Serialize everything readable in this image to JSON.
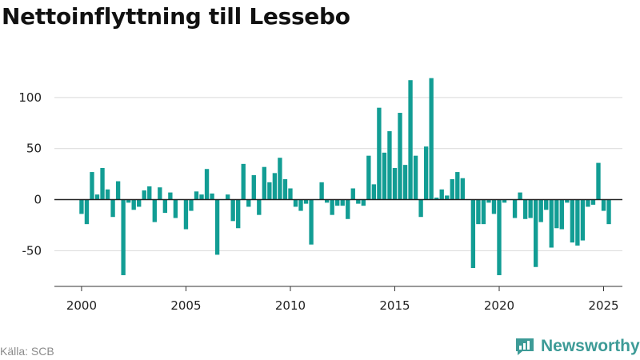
{
  "title": "Nettoinflyttning till Lessebo",
  "source": "Källa: SCB",
  "brand": {
    "name": "Newsworthy",
    "logo_icon": "bar-chart-speech-bubble-icon"
  },
  "colors": {
    "bar": "#129d94",
    "grid": "#d9d9d9",
    "zero_line": "#222222",
    "brand": "#3d9b97"
  },
  "chart_data": {
    "type": "bar",
    "title": "Nettoinflyttning till Lessebo",
    "xlabel": "",
    "ylabel": "",
    "frequency": "quarterly",
    "xlim": [
      1998.7,
      2025.9
    ],
    "ylim": [
      -85,
      125
    ],
    "x_ticks": [
      2000,
      2005,
      2010,
      2015,
      2020,
      2025
    ],
    "y_ticks": [
      -50,
      0,
      50,
      100
    ],
    "grid": true,
    "legend": "none",
    "start": "2000-Q1",
    "values": [
      -14,
      -24,
      27,
      5,
      31,
      10,
      -17,
      18,
      -74,
      -3,
      -10,
      -7,
      9,
      13,
      -22,
      12,
      -13,
      7,
      -18,
      0,
      -29,
      -11,
      8,
      5,
      30,
      6,
      -54,
      0,
      5,
      -21,
      -28,
      35,
      -7,
      24,
      -15,
      32,
      17,
      26,
      41,
      20,
      11,
      -7,
      -11,
      -4,
      -44,
      0,
      17,
      -3,
      -15,
      -6,
      -6,
      -19,
      11,
      -4,
      -6,
      43,
      15,
      90,
      46,
      67,
      31,
      85,
      34,
      117,
      43,
      -17,
      52,
      119,
      2,
      10,
      4,
      20,
      27,
      21,
      0,
      -67,
      -24,
      -24,
      -3,
      -14,
      -74,
      -3,
      0,
      -18,
      7,
      -19,
      -18,
      -66,
      -22,
      -10,
      -47,
      -28,
      -29,
      -3,
      -42,
      -45,
      -40,
      -7,
      -5,
      36,
      -11,
      -24
    ]
  }
}
